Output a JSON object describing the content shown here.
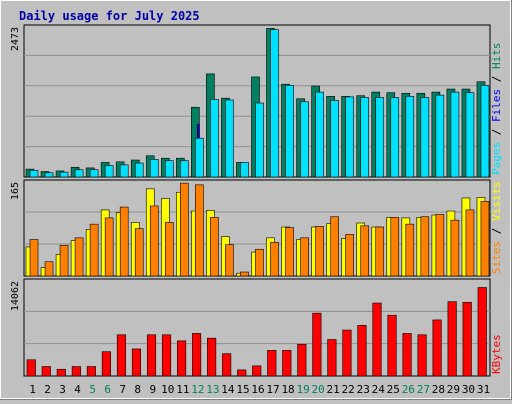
{
  "chart_data": {
    "type": "bar",
    "title": "Daily usage for July 2025",
    "categories": [
      "1",
      "2",
      "3",
      "4",
      "5",
      "6",
      "7",
      "8",
      "9",
      "10",
      "11",
      "12",
      "13",
      "14",
      "15",
      "16",
      "17",
      "18",
      "19",
      "20",
      "21",
      "22",
      "23",
      "24",
      "25",
      "26",
      "27",
      "28",
      "29",
      "30",
      "31"
    ],
    "weekend_days": [
      "5",
      "6",
      "12",
      "13",
      "19",
      "20",
      "26",
      "27"
    ],
    "panels": [
      {
        "id": "hits-files-pages",
        "ymax": 2473,
        "ymax_label": "2473",
        "right_labels": [
          "Pages",
          "Files",
          "Hits"
        ],
        "series": [
          {
            "name": "Hits",
            "color": "#008060",
            "values": [
              130,
              90,
              100,
              160,
              150,
              240,
              250,
              280,
              350,
              310,
              310,
              1150,
              1700,
              1300,
              240,
              1650,
              2450,
              1530,
              1290,
              1500,
              1330,
              1330,
              1340,
              1400,
              1390,
              1380,
              1380,
              1400,
              1450,
              1450,
              1570
            ]
          },
          {
            "name": "Files",
            "color": "#0000ff",
            "values": [
              110,
              70,
              80,
              120,
              110,
              180,
              190,
              210,
              270,
              240,
              240,
              870,
              1200,
              1000,
              210,
              1200,
              1800,
              1150,
              980,
              1150,
              1020,
              1010,
              1010,
              1070,
              1070,
              1060,
              1060,
              1080,
              1110,
              1110,
              1200
            ]
          },
          {
            "name": "Pages",
            "color": "#00e0ff",
            "values": [
              110,
              70,
              80,
              120,
              120,
              190,
              200,
              230,
              290,
              270,
              270,
              640,
              1280,
              1270,
              240,
              1220,
              2430,
              1510,
              1240,
              1400,
              1260,
              1320,
              1310,
              1310,
              1310,
              1330,
              1310,
              1350,
              1400,
              1390,
              1510
            ]
          }
        ]
      },
      {
        "id": "visits-sites",
        "ymax": 165,
        "ymax_label": "165",
        "right_labels": [
          "Sites",
          "Visits"
        ],
        "series": [
          {
            "name": "Visits",
            "color": "#ffff00",
            "values": [
              51,
              15,
              38,
              62,
              82,
              116,
              111,
              94,
              153,
              136,
              147,
              114,
              115,
              69,
              5,
              42,
              67,
              86,
              64,
              86,
              92,
              66,
              93,
              86,
              103,
              102,
              103,
              107,
              114,
              137,
              138
            ]
          },
          {
            "name": "Sites",
            "color": "#ff8000",
            "values": [
              64,
              25,
              54,
              67,
              91,
              102,
              121,
              83,
              123,
              94,
              163,
              160,
              103,
              55,
              7,
              47,
              59,
              85,
              67,
              87,
              104,
              73,
              88,
              86,
              103,
              91,
              104,
              108,
              98,
              116,
              131
            ]
          }
        ]
      },
      {
        "id": "kbytes",
        "ymax": 14062,
        "ymax_label": "14062",
        "right_labels": [
          "KBytes"
        ],
        "series": [
          {
            "name": "KBytes",
            "color": "#ff0000",
            "values": [
              2400,
              1400,
              1000,
              1400,
              1400,
              3600,
              6100,
              4000,
              6100,
              6100,
              5200,
              6300,
              5600,
              3300,
              900,
              1500,
              3800,
              3800,
              4700,
              9300,
              5400,
              6800,
              7500,
              10800,
              9000,
              6300,
              6100,
              8300,
              11000,
              10900,
              13100
            ]
          }
        ]
      }
    ]
  },
  "colors": {
    "background": "#c0c0c0",
    "plot_bg": "#c0c0c0",
    "title": "#0000ff",
    "weekend_label": "#00805c",
    "weekday_label": "#000000",
    "grid": "#909090"
  }
}
